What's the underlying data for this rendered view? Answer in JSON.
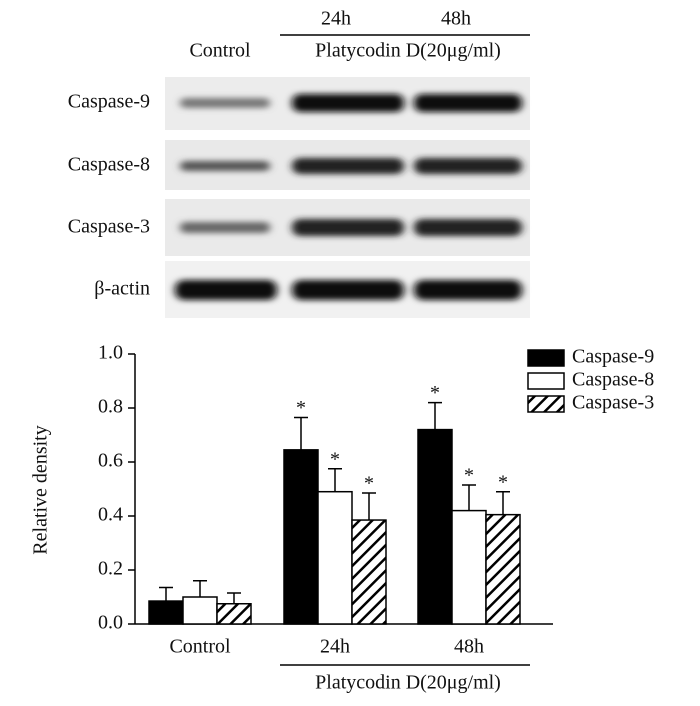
{
  "blot": {
    "header": {
      "control": "Control",
      "time_24": "24h",
      "time_48": "48h",
      "treatment": "Platycodin D(20μg/ml)"
    },
    "rows": [
      "Caspase-9",
      "Caspase-8",
      "Caspase-3",
      "β-actin"
    ]
  },
  "chart_data": {
    "type": "bar",
    "y_label": "Relative density",
    "categories": [
      "Control",
      "24h",
      "48h"
    ],
    "group_label": "Platycodin D(20μg/ml)",
    "ylim": [
      0,
      1.0
    ],
    "yticks": [
      {
        "value": 0,
        "label": "0.0"
      },
      0.2,
      0.4,
      0.6,
      0.8,
      {
        "value": 1.0,
        "label": "1.0"
      }
    ],
    "legend": "top-right",
    "series": [
      {
        "name": "Caspase-9",
        "color": "#000000",
        "hatch": false,
        "values": [
          0.085,
          0.645,
          0.72
        ],
        "errors": [
          0.05,
          0.12,
          0.1
        ],
        "significance": [
          null,
          "*",
          "*"
        ]
      },
      {
        "name": "Caspase-8",
        "color": "#ffffff",
        "hatch": false,
        "values": [
          0.1,
          0.49,
          0.42
        ],
        "errors": [
          0.06,
          0.085,
          0.095
        ],
        "significance": [
          null,
          "*",
          "*"
        ]
      },
      {
        "name": "Caspase-3",
        "color": "#000000",
        "hatch": true,
        "values": [
          0.075,
          0.385,
          0.405
        ],
        "errors": [
          0.04,
          0.1,
          0.085
        ],
        "significance": [
          null,
          "*",
          "*"
        ]
      }
    ]
  }
}
